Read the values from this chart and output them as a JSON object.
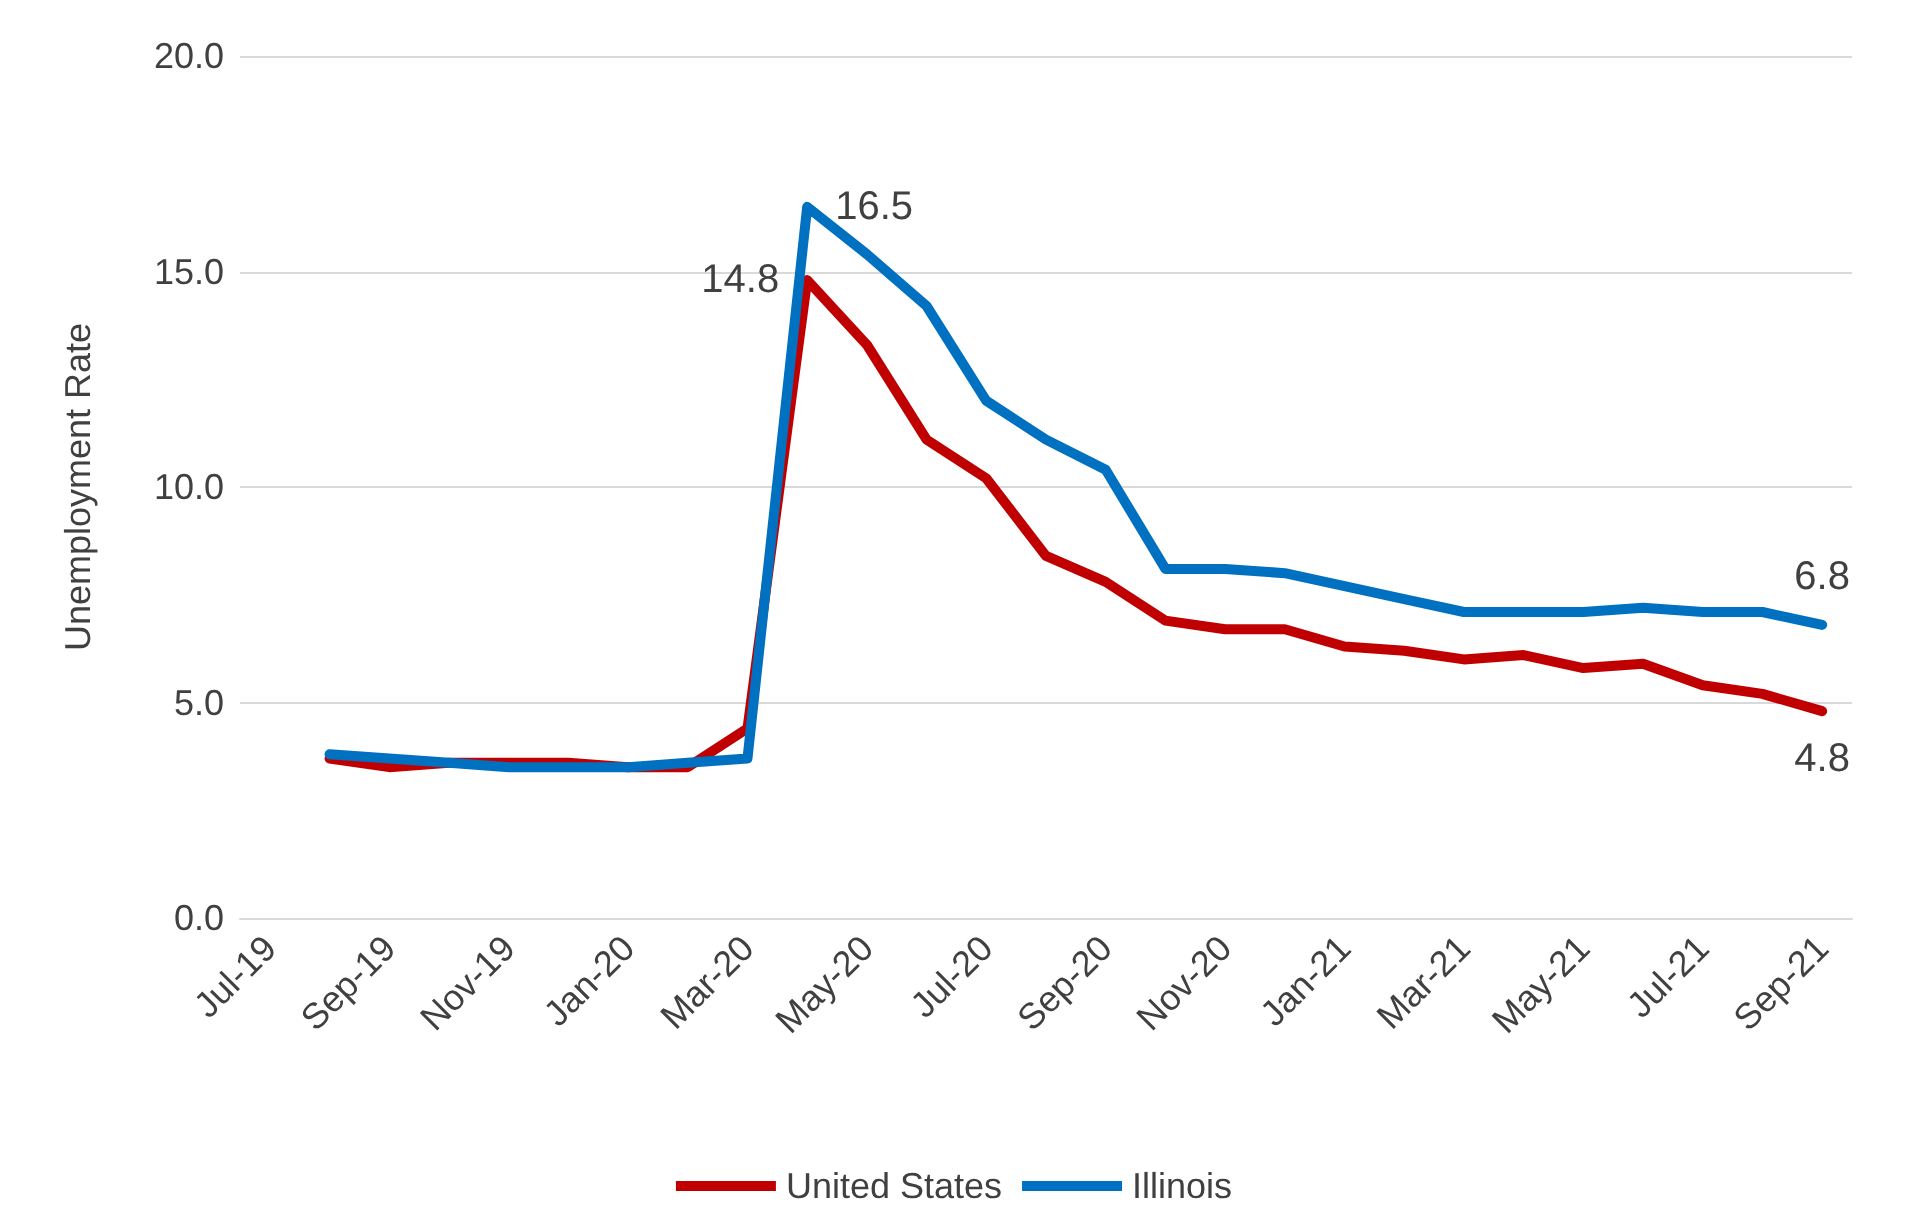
{
  "chart_data": {
    "type": "line",
    "ylabel": "Unemployment Rate",
    "categories": [
      "Jul-19",
      null,
      "Sep-19",
      null,
      "Nov-19",
      null,
      "Jan-20",
      null,
      "Mar-20",
      null,
      "May-20",
      null,
      "Jul-20",
      null,
      "Sep-20",
      null,
      "Nov-20",
      null,
      "Jan-21",
      null,
      "Mar-21",
      null,
      "May-21",
      null,
      "Jul-21",
      null,
      "Sep-21"
    ],
    "series": [
      {
        "name": "United States",
        "color": "#c00000",
        "values": [
          null,
          3.7,
          3.5,
          3.6,
          3.6,
          3.6,
          3.5,
          3.5,
          4.4,
          14.8,
          13.3,
          11.1,
          10.2,
          8.4,
          7.8,
          6.9,
          6.7,
          6.7,
          6.3,
          6.2,
          6.0,
          6.1,
          5.8,
          5.9,
          5.4,
          5.2,
          4.8
        ],
        "value_labels": [
          null,
          null,
          null,
          null,
          null,
          null,
          null,
          null,
          null,
          "14.8",
          null,
          null,
          null,
          null,
          null,
          null,
          null,
          null,
          null,
          null,
          null,
          null,
          null,
          null,
          null,
          null,
          "4.8"
        ]
      },
      {
        "name": "Illinois",
        "color": "#0070c0",
        "values": [
          null,
          3.8,
          3.7,
          3.6,
          3.5,
          3.5,
          3.5,
          3.6,
          3.7,
          16.5,
          15.4,
          14.2,
          12.0,
          11.1,
          10.4,
          8.1,
          8.1,
          8.0,
          7.7,
          7.4,
          7.1,
          7.1,
          7.1,
          7.2,
          7.1,
          7.1,
          6.8
        ],
        "value_labels": [
          null,
          null,
          null,
          null,
          null,
          null,
          null,
          null,
          null,
          "16.5",
          null,
          null,
          null,
          null,
          null,
          null,
          null,
          null,
          null,
          null,
          null,
          null,
          null,
          null,
          null,
          null,
          "6.8"
        ]
      }
    ],
    "ylim": [
      0,
      20
    ],
    "yticks": [
      {
        "value": 0,
        "label": "0.0"
      },
      {
        "value": 5,
        "label": "5.0"
      },
      {
        "value": 10,
        "label": "10.0"
      },
      {
        "value": 15,
        "label": "15.0"
      },
      {
        "value": 20,
        "label": "20.0"
      }
    ],
    "grid": "y",
    "legend": "bottom",
    "marker": "none",
    "line_style": "solid"
  }
}
